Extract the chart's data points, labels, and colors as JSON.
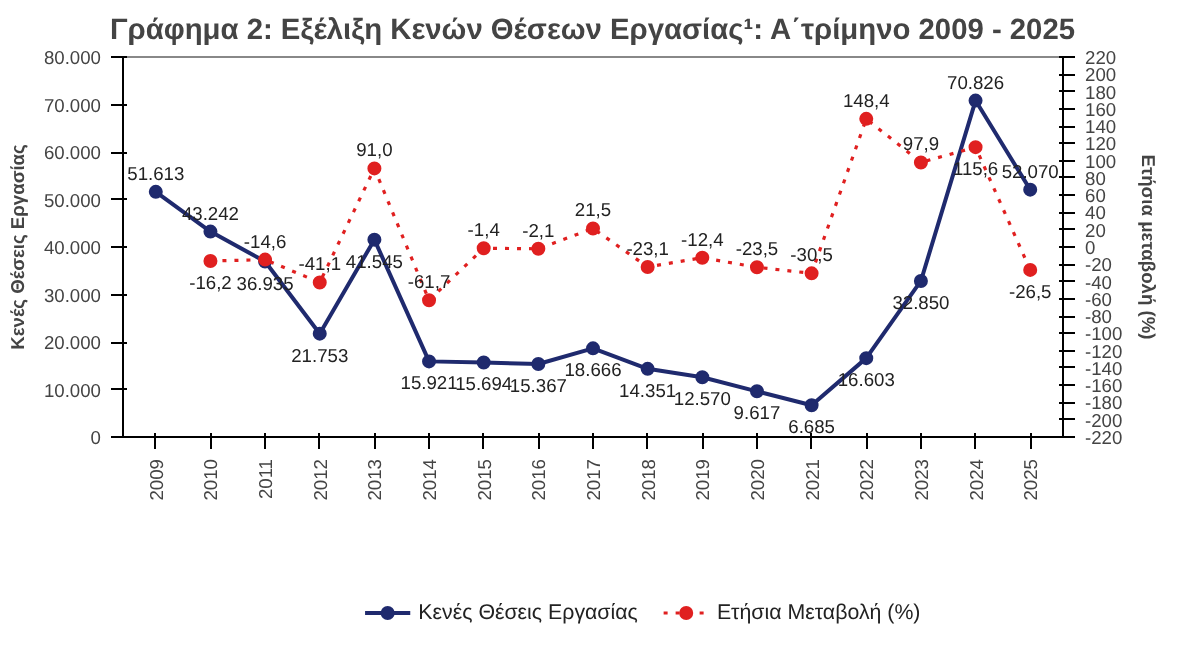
{
  "chart_data": {
    "type": "line",
    "title": "Γράφημα 2: Εξέλιξη Κενών Θέσεων Εργασίας¹: Α΄τρίμηνο 2009 - 2025",
    "ylabel": "Κενές Θέσεις Εργασίας",
    "y2label": "Ετήσια μεταβολή (%)",
    "categories": [
      "2009",
      "2010",
      "2011",
      "2012",
      "2013",
      "2014",
      "2015",
      "2016",
      "2017",
      "2018",
      "2019",
      "2020",
      "2021",
      "2022",
      "2023",
      "2024",
      "2025"
    ],
    "series": [
      {
        "name": "Κενές Θέσεις Εργασίας",
        "color": "#1f2a6e",
        "line_style": "solid",
        "values": [
          51613,
          43242,
          36935,
          21753,
          41545,
          15921,
          15694,
          15367,
          18666,
          14351,
          12570,
          9617,
          6685,
          16603,
          32850,
          70826,
          52070
        ],
        "value_labels": [
          "51.613",
          "43.242",
          "36.935",
          "21.753",
          "41.545",
          "15.921",
          "15.694",
          "15.367",
          "18.666",
          "14.351",
          "12.570",
          "9.617",
          "6.685",
          "16.603",
          "32.850",
          "70.826",
          "52.070"
        ]
      },
      {
        "name": "Ετήσια Μεταβολή (%)",
        "color": "#e02020",
        "line_style": "dotted",
        "axis": "y2",
        "values": [
          null,
          -16.2,
          -14.6,
          -41.1,
          91.0,
          -61.7,
          -1.4,
          -2.1,
          21.5,
          -23.1,
          -12.4,
          -23.5,
          -30.5,
          148.4,
          97.9,
          115.6,
          -26.5
        ],
        "value_labels": [
          null,
          "-16,2",
          "-14,6",
          "-41,1",
          "91,0",
          "-61,7",
          "-1,4",
          "-2,1",
          "21,5",
          "-23,1",
          "-12,4",
          "-23,5",
          "-30,5",
          "148,4",
          "97,9",
          "115,6",
          "-26,5"
        ]
      }
    ],
    "ylim": [
      0,
      80000
    ],
    "yticks": [
      {
        "value": 0,
        "label": "0"
      },
      {
        "value": 10000,
        "label": "10.000"
      },
      {
        "value": 20000,
        "label": "20.000"
      },
      {
        "value": 30000,
        "label": "30.000"
      },
      {
        "value": 40000,
        "label": "40.000"
      },
      {
        "value": 50000,
        "label": "50.000"
      },
      {
        "value": 60000,
        "label": "60.000"
      },
      {
        "value": 70000,
        "label": "70.000"
      },
      {
        "value": 80000,
        "label": "80.000"
      }
    ],
    "y2lim": [
      -220,
      220
    ],
    "y2ticks": [
      -220,
      -200,
      -180,
      -160,
      -140,
      -120,
      -100,
      -80,
      -60,
      -40,
      -20,
      0,
      20,
      40,
      60,
      80,
      100,
      120,
      140,
      160,
      180,
      200,
      220
    ],
    "marker": "circle",
    "grid": false,
    "legend": "bottom"
  }
}
